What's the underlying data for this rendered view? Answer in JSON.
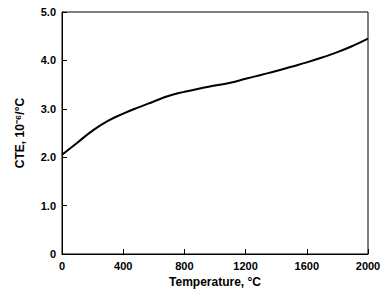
{
  "chart_data": {
    "type": "line",
    "x_label": "Temperature, °C",
    "y_label": "CTE, 10⁻⁶/°C",
    "x": [
      0,
      100,
      200,
      300,
      400,
      500,
      600,
      700,
      800,
      900,
      1000,
      1100,
      1200,
      1300,
      1400,
      1500,
      1600,
      1700,
      1800,
      1900,
      2000
    ],
    "values": [
      2.05,
      2.3,
      2.55,
      2.75,
      2.9,
      3.03,
      3.15,
      3.27,
      3.35,
      3.42,
      3.48,
      3.54,
      3.62,
      3.7,
      3.78,
      3.87,
      3.96,
      4.06,
      4.17,
      4.3,
      4.45
    ],
    "color": "#000000",
    "xlim": [
      0,
      2000
    ],
    "xticks": [
      0,
      400,
      800,
      1200,
      1600,
      2000
    ],
    "ylim": [
      0,
      5
    ],
    "yticks": [
      0,
      {
        "value": 1,
        "label": "1.0"
      },
      {
        "value": 2,
        "label": "2.0"
      },
      {
        "value": 3,
        "label": "3.0"
      },
      {
        "value": 4,
        "label": "4.0"
      },
      {
        "value": 5,
        "label": "5.0"
      }
    ],
    "grid": false
  }
}
